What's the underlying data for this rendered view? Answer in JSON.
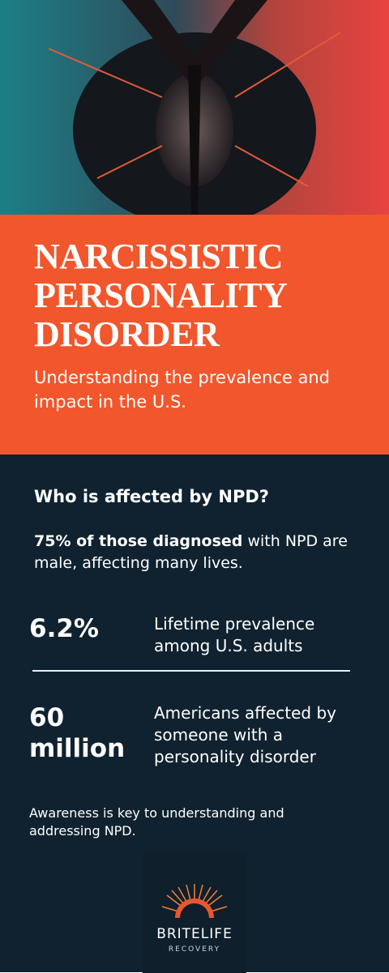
{
  "header": {
    "title": "NARCISSISTIC PERSONALITY DISORDER",
    "subtitle": "Understanding the prevalence and impact in the U.S."
  },
  "section": {
    "heading": "Who is affected by NPD?",
    "intro_bold": "75% of those diagnosed",
    "intro_rest": "with NPD are male, affecting many lives.",
    "stats": [
      {
        "figure": "6.2%",
        "label": "Lifetime prevalence among U.S. adults"
      },
      {
        "figure": "60 million",
        "label": "Americans affected by someone with a personality disorder"
      }
    ],
    "note": "Awareness is key to understanding and addressing NPD."
  },
  "logo": {
    "brand": "BRITELIFE",
    "subbrand": "RECOVERY"
  }
}
